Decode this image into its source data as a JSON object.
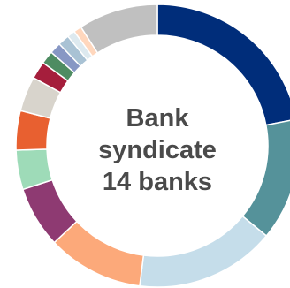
{
  "chart_data": {
    "type": "pie",
    "donut": true,
    "unit": "%",
    "center_text": [
      "Bank",
      "syndicate",
      "14 banks"
    ],
    "slices": [
      {
        "value": 22.0,
        "color": "#002d7a"
      },
      {
        "value": 14.0,
        "color": "#55929a"
      },
      {
        "value": 16.0,
        "color": "#c5ddea"
      },
      {
        "value": 11.0,
        "color": "#fca97a"
      },
      {
        "value": 7.0,
        "color": "#8e3a72"
      },
      {
        "value": 4.5,
        "color": "#9edbb8"
      },
      {
        "value": 4.5,
        "color": "#e86030"
      },
      {
        "value": 4.0,
        "color": "#d8d4cc"
      },
      {
        "value": 2.0,
        "color": "#a51e3c"
      },
      {
        "value": 1.5,
        "color": "#4e8c62"
      },
      {
        "value": 1.3,
        "color": "#8797c4"
      },
      {
        "value": 1.3,
        "color": "#a9c2d4"
      },
      {
        "value": 0.9,
        "color": "#dde9ef"
      },
      {
        "value": 0.9,
        "color": "#ffd7bd"
      },
      {
        "value": 9.1,
        "color": "#c0c0c0"
      }
    ]
  }
}
